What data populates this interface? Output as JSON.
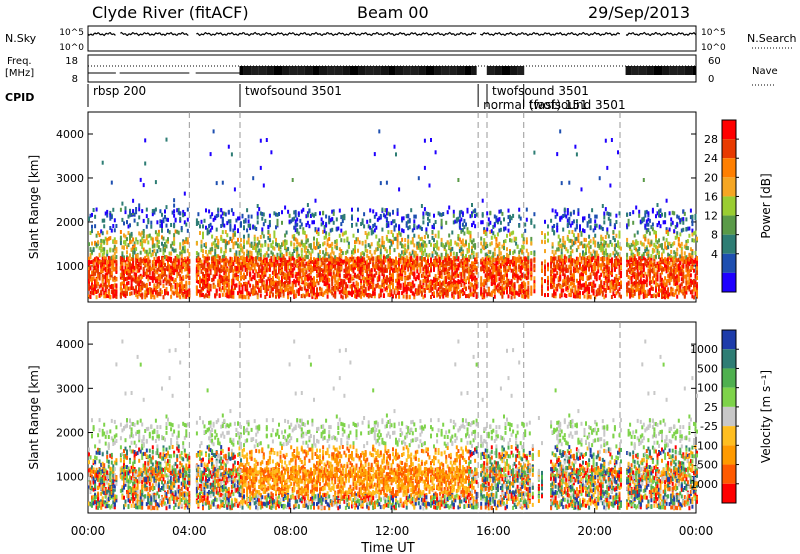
{
  "header": {
    "station": "Clyde River (fitACF)",
    "beam": "Beam 00",
    "date": "29/Sep/2013"
  },
  "status": {
    "nsky_label": "N.Sky",
    "nsearch_label": "N.Search",
    "freq_label_line1": "Freq.",
    "freq_label_line2": "[MHz]",
    "nave_label": "Nave",
    "cpid_label": "CPID",
    "count_ticks": [
      "10^5",
      "10^0"
    ],
    "freq_ticks": [
      "18",
      "8"
    ],
    "nave_ticks": [
      "60",
      "0"
    ],
    "cpid_segments": [
      {
        "start": 0,
        "label": "rbsp 200"
      },
      {
        "start": 6,
        "label": "twofsound 3501"
      },
      {
        "start": 15.4,
        "label": "normal (fast) 151"
      },
      {
        "start": 15.75,
        "label": "twofsound 3501"
      },
      {
        "start": 17.2,
        "label": "twofsound 3501"
      }
    ],
    "gap_hours": [
      [
        1.1,
        1.25
      ],
      [
        4.0,
        4.25
      ],
      [
        15.35,
        15.45
      ],
      [
        21.0,
        21.2
      ]
    ]
  },
  "chart_data": [
    {
      "type": "heatmap",
      "name": "power-panel",
      "xlabel": "",
      "ylabel": "Slant Range [km]",
      "xlim": [
        0,
        24
      ],
      "ylim": [
        180,
        4500
      ],
      "yticks": [
        "1000",
        "2000",
        "3000",
        "4000"
      ],
      "colorbar_label": "Power [dB]",
      "colorbar_ticks": [
        "4",
        "8",
        "12",
        "16",
        "20",
        "24",
        "28"
      ],
      "colorbar_colors": [
        "#1f00ff",
        "#1e4fb0",
        "#2e7d74",
        "#5a9a48",
        "#9acd32",
        "#f5a623",
        "#ff7f00",
        "#e83a00",
        "#ff0000"
      ],
      "boundaries_hours": [
        4.0,
        6.0,
        15.4,
        15.75,
        17.2,
        21.0
      ]
    },
    {
      "type": "heatmap",
      "name": "velocity-panel",
      "xlabel": "Time UT",
      "ylabel": "Slant Range [km]",
      "xlim": [
        0,
        24
      ],
      "ylim": [
        180,
        4500
      ],
      "yticks": [
        "1000",
        "2000",
        "3000",
        "4000"
      ],
      "xticks": [
        "00:00",
        "04:00",
        "08:00",
        "12:00",
        "16:00",
        "20:00",
        "00:00"
      ],
      "colorbar_label": "Velocity [m s⁻¹]",
      "colorbar_ticks": [
        "1000",
        "500",
        "100",
        "25",
        "-25",
        "-100",
        "-500",
        "-1000"
      ],
      "colorbar_colors": [
        "#1e3caa",
        "#2e7d74",
        "#4fb04f",
        "#7ed34a",
        "#c8c8c8",
        "#ffbe20",
        "#ff9a00",
        "#ff5a00",
        "#ff0000"
      ],
      "boundaries_hours": [
        4.0,
        6.0,
        15.4,
        15.75,
        17.2,
        21.0
      ]
    }
  ]
}
